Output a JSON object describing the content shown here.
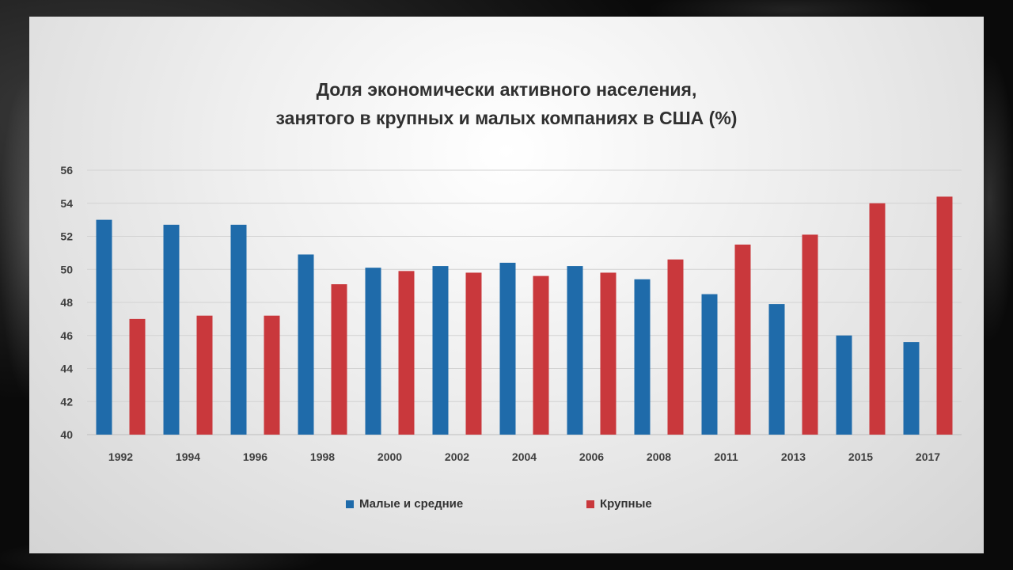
{
  "chart_data": {
    "type": "bar",
    "title_lines": [
      "Доля экономически активного населения,",
      "занятого в крупных и малых компаниях в США (%)"
    ],
    "categories": [
      "1992",
      "1994",
      "1996",
      "1998",
      "2000",
      "2002",
      "2004",
      "2006",
      "2008",
      "2011",
      "2013",
      "2015",
      "2017"
    ],
    "series": [
      {
        "name": "Малые и средние",
        "color": "#1F6BAA",
        "values": [
          53.0,
          52.7,
          52.7,
          50.9,
          50.1,
          50.2,
          50.4,
          50.2,
          49.4,
          48.5,
          47.9,
          46.0,
          45.6
        ]
      },
      {
        "name": "Крупные",
        "color": "#C9383C",
        "values": [
          47.0,
          47.2,
          47.2,
          49.1,
          49.9,
          49.8,
          49.6,
          49.8,
          50.6,
          51.5,
          52.1,
          54.0,
          54.4
        ]
      }
    ],
    "ylim": [
      40,
      56
    ],
    "yticks": [
      40,
      42,
      44,
      46,
      48,
      50,
      52,
      54,
      56
    ],
    "grid": true,
    "legend_position": "bottom"
  }
}
